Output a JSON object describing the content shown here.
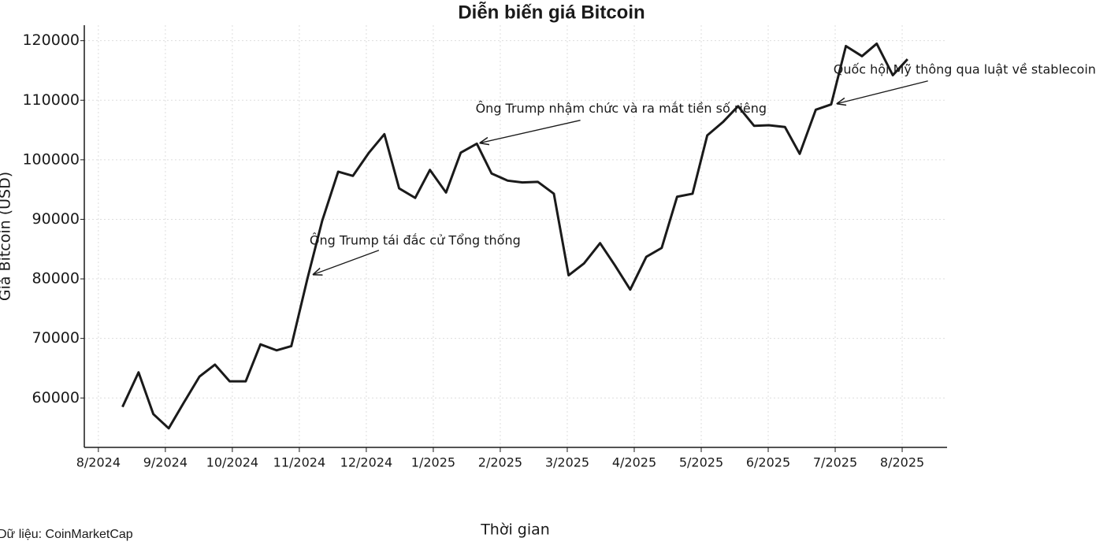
{
  "chart_data": {
    "type": "line",
    "title": "Diễn biến giá Bitcoin",
    "x_label": "Thời gian",
    "y_label": "Giá Bitcoin (USD)",
    "source": "Dữ liệu: CoinMarketCap",
    "x": [
      0.36,
      0.6,
      0.82,
      1.05,
      1.28,
      1.51,
      1.74,
      1.96,
      2.2,
      2.42,
      2.66,
      2.88,
      3.12,
      3.34,
      3.58,
      3.8,
      4.04,
      4.27,
      4.49,
      4.73,
      4.95,
      5.19,
      5.41,
      5.65,
      5.87,
      6.11,
      6.33,
      6.56,
      6.8,
      7.02,
      7.25,
      7.49,
      7.71,
      7.94,
      8.18,
      8.41,
      8.64,
      8.87,
      9.09,
      9.33,
      9.55,
      9.79,
      10.01,
      10.25,
      10.47,
      10.71,
      10.94,
      11.16,
      11.4,
      11.62,
      11.86,
      12.08
    ],
    "values": [
      58500,
      64300,
      57300,
      54900,
      59300,
      63600,
      65600,
      62800,
      62800,
      69000,
      68000,
      68700,
      80000,
      89700,
      98000,
      97300,
      101200,
      104300,
      95200,
      93600,
      98300,
      94500,
      101200,
      102700,
      97700,
      96500,
      96200,
      96300,
      94300,
      80600,
      82600,
      86000,
      82300,
      78200,
      83700,
      85200,
      93800,
      94300,
      104100,
      106400,
      109000,
      105700,
      105800,
      105500,
      101000,
      108400,
      109300,
      119100,
      117400,
      119500,
      114200,
      116900
    ],
    "color": "#1a1a1a",
    "xlim": [
      -0.21,
      12.67
    ],
    "xticks": [
      {
        "value": 0,
        "label": "8/2024"
      },
      {
        "value": 1,
        "label": "9/2024"
      },
      {
        "value": 2,
        "label": "10/2024"
      },
      {
        "value": 3,
        "label": "11/2024"
      },
      {
        "value": 4,
        "label": "12/2024"
      },
      {
        "value": 5,
        "label": "1/2025"
      },
      {
        "value": 6,
        "label": "2/2025"
      },
      {
        "value": 7,
        "label": "3/2025"
      },
      {
        "value": 8,
        "label": "4/2025"
      },
      {
        "value": 9,
        "label": "5/2025"
      },
      {
        "value": 10,
        "label": "6/2025"
      },
      {
        "value": 11,
        "label": "7/2025"
      },
      {
        "value": 12,
        "label": "8/2025"
      }
    ],
    "ylim": [
      51700,
      122600
    ],
    "yticks": [
      60000,
      70000,
      80000,
      90000,
      100000,
      110000,
      120000
    ],
    "grid": true,
    "annotations": [
      {
        "text": "Ông Trump tái đắc cử Tổng thống",
        "x": 3.2,
        "y": 80700
      },
      {
        "text": "Ông Trump nhậm chức và ra mắt tiền số riêng",
        "x": 5.69,
        "y": 102800
      },
      {
        "text": "Quốc hội Mỹ thông qua luật về stablecoin",
        "x": 11.02,
        "y": 109400
      }
    ]
  }
}
